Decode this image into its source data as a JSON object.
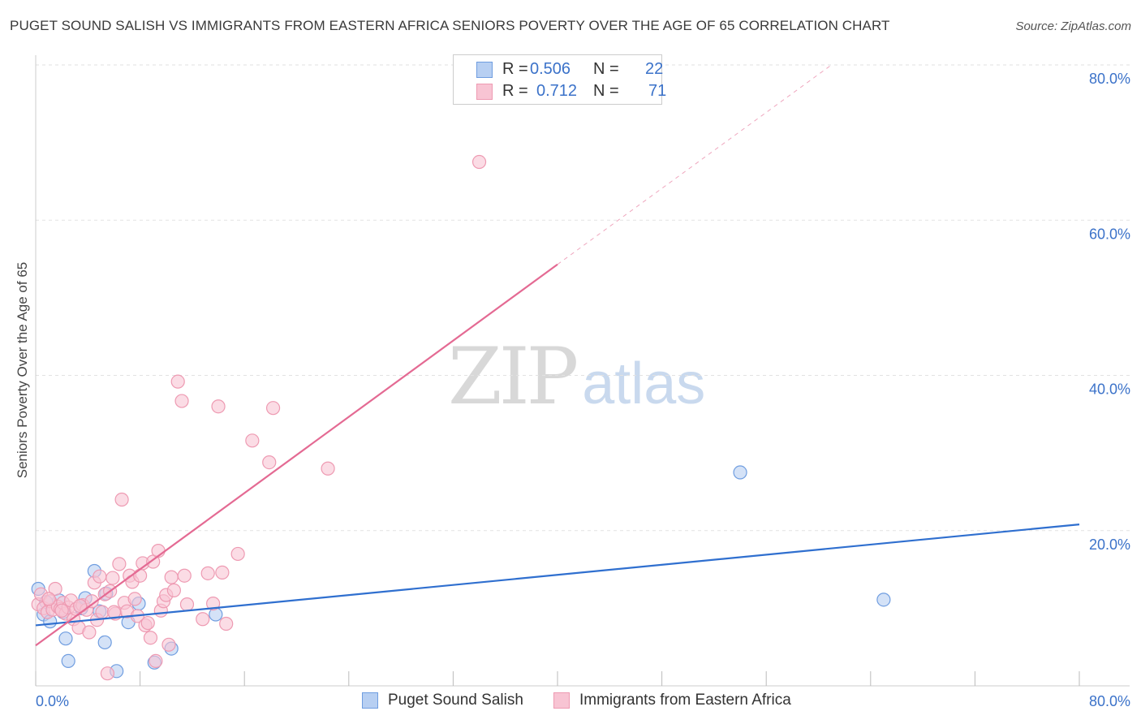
{
  "header": {
    "title": "PUGET SOUND SALISH VS IMMIGRANTS FROM EASTERN AFRICA SENIORS POVERTY OVER THE AGE OF 65 CORRELATION CHART",
    "source": "Source: ZipAtlas.com"
  },
  "watermark": {
    "zip": "ZIP",
    "atlas": "atlas"
  },
  "legend": {
    "series1": {
      "r_label": "R =",
      "r_value": "0.506",
      "n_label": "N =",
      "n_value": "22"
    },
    "series2": {
      "r_label": "R =",
      "r_value": "0.712",
      "n_label": "N =",
      "n_value": "71"
    }
  },
  "colors": {
    "blue_fill": "#b7cff2",
    "blue_stroke": "#6f9de0",
    "blue_line": "#2f6fcf",
    "pink_fill": "#f8c4d3",
    "pink_stroke": "#ee9ab2",
    "pink_line": "#e46a93",
    "axis_text": "#3b72c9",
    "grid": "#e2e2e2"
  },
  "chart_data": {
    "type": "scatter",
    "title": "PUGET SOUND SALISH VS IMMIGRANTS FROM EASTERN AFRICA SENIORS POVERTY OVER THE AGE OF 65 CORRELATION CHART",
    "xlabel": "",
    "ylabel": "Seniors Poverty Over the Age of 65",
    "xlim": [
      0,
      80
    ],
    "ylim": [
      0,
      80
    ],
    "x_tick_labels": [
      "0.0%",
      "80.0%"
    ],
    "y_tick_labels": [
      "20.0%",
      "40.0%",
      "60.0%",
      "80.0%"
    ],
    "y_ticks": [
      20,
      40,
      60,
      80
    ],
    "grid": true,
    "legend_position": "top-center",
    "series": [
      {
        "name": "Puget Sound Salish",
        "color": "blue",
        "r": 0.506,
        "n": 22,
        "trend": {
          "x0": 0,
          "y0": 7.8,
          "x1": 80,
          "y1": 20.8,
          "dashed_from": null
        },
        "points": [
          [
            0.2,
            12.5
          ],
          [
            0.6,
            9.2
          ],
          [
            0.8,
            10.8
          ],
          [
            1.1,
            8.3
          ],
          [
            1.8,
            11.0
          ],
          [
            2.3,
            6.1
          ],
          [
            2.5,
            3.2
          ],
          [
            3.5,
            10.0
          ],
          [
            3.8,
            11.3
          ],
          [
            4.5,
            14.8
          ],
          [
            4.9,
            9.6
          ],
          [
            5.3,
            5.6
          ],
          [
            5.4,
            11.9
          ],
          [
            6.2,
            1.9
          ],
          [
            7.1,
            8.2
          ],
          [
            7.9,
            10.6
          ],
          [
            9.1,
            3.0
          ],
          [
            10.4,
            4.8
          ],
          [
            13.8,
            9.2
          ],
          [
            54.0,
            27.5
          ],
          [
            65.0,
            11.1
          ],
          [
            2.1,
            9.5
          ]
        ]
      },
      {
        "name": "Immigrants from Eastern Africa",
        "color": "pink",
        "r": 0.712,
        "n": 71,
        "trend": {
          "x0": 0,
          "y0": 5.2,
          "x1": 40,
          "y1": 54.3,
          "dashed_to_x": 61,
          "dashed_to_y": 80.0
        },
        "points": [
          [
            0.2,
            10.5
          ],
          [
            0.4,
            11.8
          ],
          [
            0.6,
            10.0
          ],
          [
            0.9,
            9.5
          ],
          [
            1.1,
            10.9
          ],
          [
            1.3,
            9.8
          ],
          [
            1.5,
            12.5
          ],
          [
            1.7,
            10.2
          ],
          [
            1.9,
            9.9
          ],
          [
            2.1,
            10.7
          ],
          [
            2.3,
            9.3
          ],
          [
            2.5,
            10.1
          ],
          [
            2.7,
            11.0
          ],
          [
            2.9,
            8.6
          ],
          [
            3.1,
            9.9
          ],
          [
            3.3,
            7.5
          ],
          [
            3.6,
            10.4
          ],
          [
            3.9,
            9.8
          ],
          [
            4.1,
            6.9
          ],
          [
            4.3,
            10.9
          ],
          [
            4.5,
            13.3
          ],
          [
            4.7,
            8.5
          ],
          [
            4.9,
            14.1
          ],
          [
            5.1,
            9.5
          ],
          [
            5.3,
            11.8
          ],
          [
            5.5,
            1.6
          ],
          [
            5.7,
            12.2
          ],
          [
            5.9,
            13.9
          ],
          [
            6.1,
            9.3
          ],
          [
            6.4,
            15.7
          ],
          [
            6.6,
            24.0
          ],
          [
            6.8,
            10.7
          ],
          [
            7.0,
            9.6
          ],
          [
            7.2,
            14.2
          ],
          [
            7.4,
            13.4
          ],
          [
            7.6,
            11.2
          ],
          [
            7.8,
            9.0
          ],
          [
            8.0,
            14.2
          ],
          [
            8.2,
            15.8
          ],
          [
            8.4,
            7.8
          ],
          [
            8.6,
            8.1
          ],
          [
            8.8,
            6.2
          ],
          [
            9.0,
            16.0
          ],
          [
            9.2,
            3.2
          ],
          [
            9.4,
            17.4
          ],
          [
            9.6,
            9.7
          ],
          [
            9.8,
            10.9
          ],
          [
            10.0,
            11.7
          ],
          [
            10.2,
            5.3
          ],
          [
            10.4,
            14.0
          ],
          [
            10.6,
            12.3
          ],
          [
            10.9,
            39.2
          ],
          [
            11.2,
            36.7
          ],
          [
            11.4,
            14.2
          ],
          [
            11.6,
            10.5
          ],
          [
            12.8,
            8.6
          ],
          [
            13.2,
            14.5
          ],
          [
            13.6,
            10.6
          ],
          [
            14.0,
            36.0
          ],
          [
            14.3,
            14.6
          ],
          [
            14.6,
            8.0
          ],
          [
            15.5,
            17.0
          ],
          [
            16.6,
            31.6
          ],
          [
            17.9,
            28.8
          ],
          [
            18.2,
            35.8
          ],
          [
            22.4,
            28.0
          ],
          [
            34.0,
            67.5
          ],
          [
            2.0,
            9.7
          ],
          [
            1.0,
            11.2
          ],
          [
            3.4,
            10.3
          ],
          [
            6.0,
            9.5
          ]
        ]
      }
    ]
  },
  "bottom_legend": {
    "item1": "Puget Sound Salish",
    "item2": "Immigrants from Eastern Africa"
  }
}
